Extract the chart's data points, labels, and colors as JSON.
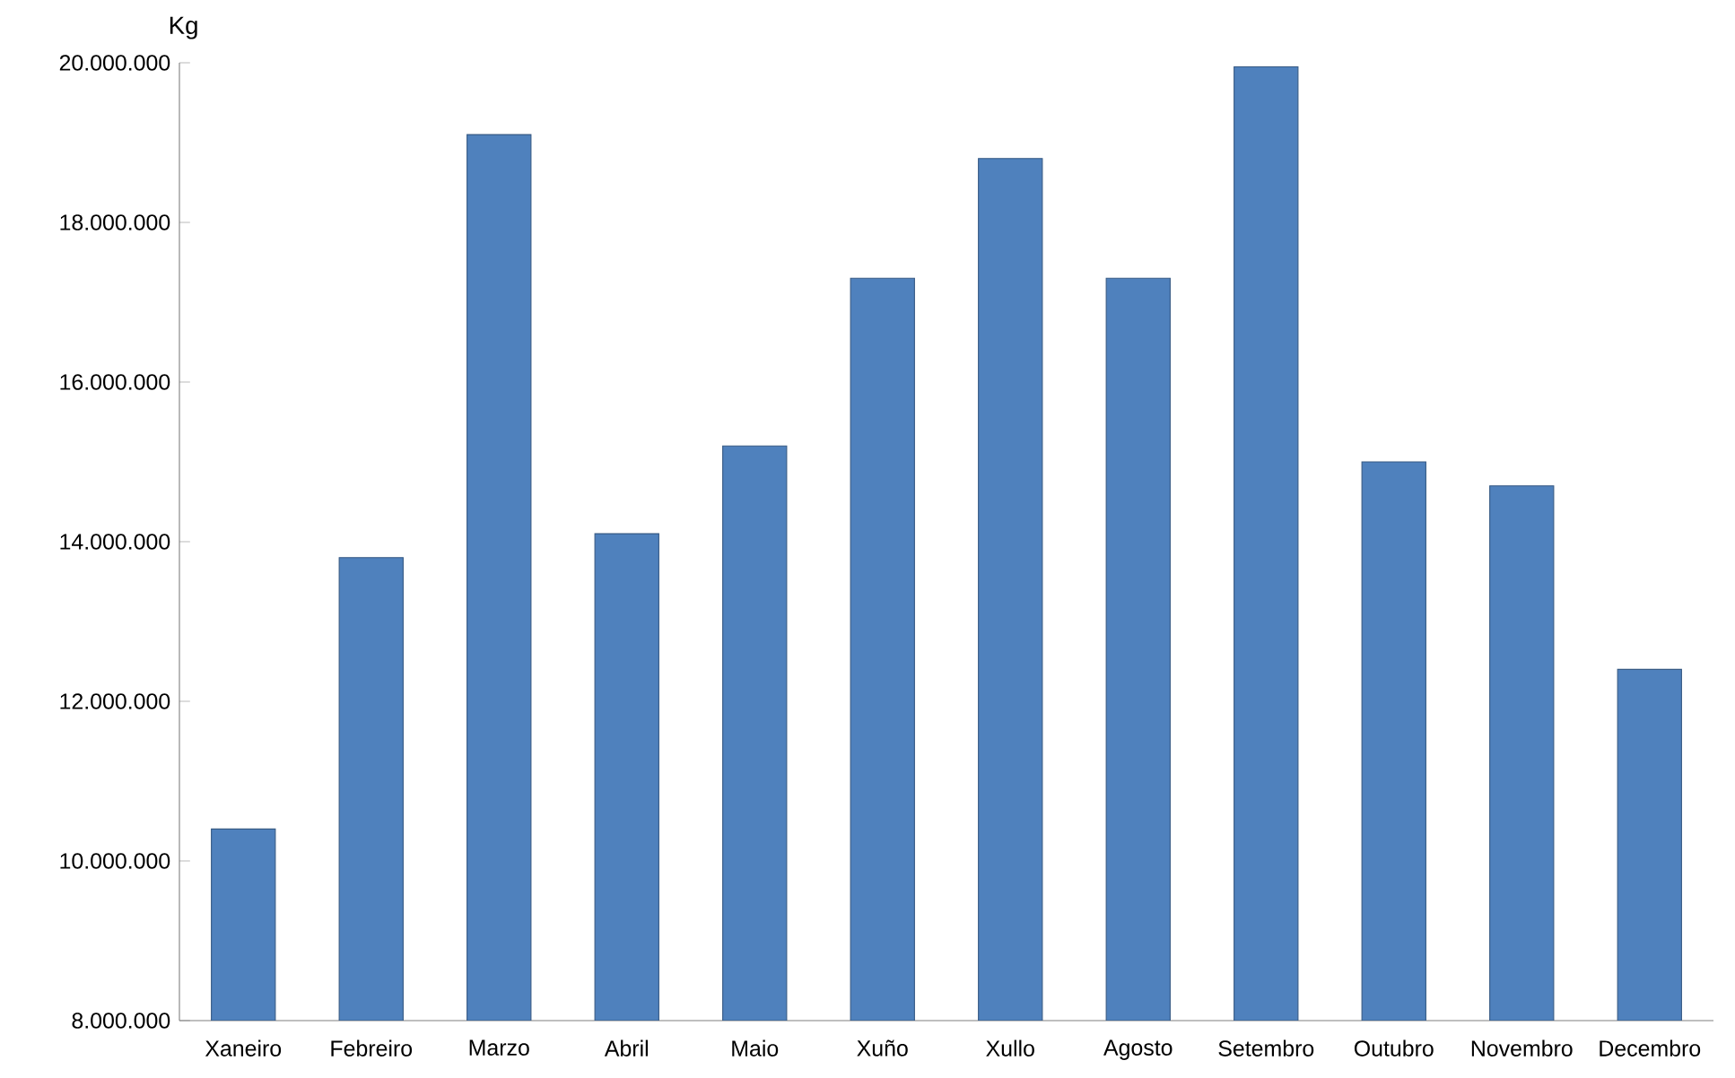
{
  "chart_data": {
    "type": "bar",
    "ylabel": "Kg",
    "categories": [
      "Xaneiro",
      "Febreiro",
      "Marzo",
      "Abril",
      "Maio",
      "Xuño",
      "Xullo",
      "Agosto",
      "Setembro",
      "Outubro",
      "Novembro",
      "Decembro"
    ],
    "values": [
      10400000,
      13800000,
      19100000,
      14100000,
      15200000,
      17300000,
      18800000,
      17300000,
      19950000,
      15000000,
      14700000,
      12400000
    ],
    "color": "#4f81bd",
    "ylim": [
      8000000,
      20000000
    ],
    "yticks": [
      {
        "value": 8000000,
        "label": "8.000.000"
      },
      {
        "value": 10000000,
        "label": "10.000.000"
      },
      {
        "value": 12000000,
        "label": "12.000.000"
      },
      {
        "value": 14000000,
        "label": "14.000.000"
      },
      {
        "value": 16000000,
        "label": "16.000.000"
      },
      {
        "value": 18000000,
        "label": "18.000.000"
      },
      {
        "value": 20000000,
        "label": "20.000.000"
      }
    ],
    "grid": false
  }
}
